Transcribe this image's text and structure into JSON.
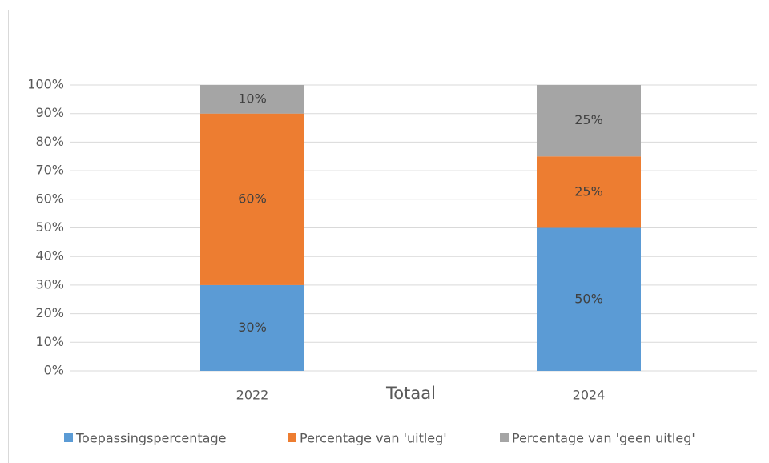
{
  "chart_data": {
    "type": "stacked_bar",
    "x_label": "Totaal",
    "categories": [
      "2022",
      "2024"
    ],
    "series": [
      {
        "name": "Toepassingspercentage",
        "color": "#5b9bd5",
        "values": [
          30,
          50
        ],
        "value_labels": [
          "30%",
          "50%"
        ]
      },
      {
        "name": "Percentage van 'uitleg'",
        "color": "#ed7d31",
        "values": [
          60,
          25
        ],
        "value_labels": [
          "60%",
          "25%"
        ]
      },
      {
        "name": "Percentage van 'geen uitleg'",
        "color": "#a5a5a5",
        "values": [
          10,
          25
        ],
        "value_labels": [
          "10%",
          "25%"
        ]
      }
    ],
    "ylim": [
      0,
      100
    ],
    "yticks": [
      {
        "value": 0,
        "label": "0%"
      },
      {
        "value": 10,
        "label": "10%"
      },
      {
        "value": 20,
        "label": "20%"
      },
      {
        "value": 30,
        "label": "30%"
      },
      {
        "value": 40,
        "label": "40%"
      },
      {
        "value": 50,
        "label": "50%"
      },
      {
        "value": 60,
        "label": "60%"
      },
      {
        "value": 70,
        "label": "70%"
      },
      {
        "value": 80,
        "label": "80%"
      },
      {
        "value": 90,
        "label": "90%"
      },
      {
        "value": 100,
        "label": "100%"
      }
    ],
    "grid": true,
    "legend": "bottom"
  }
}
